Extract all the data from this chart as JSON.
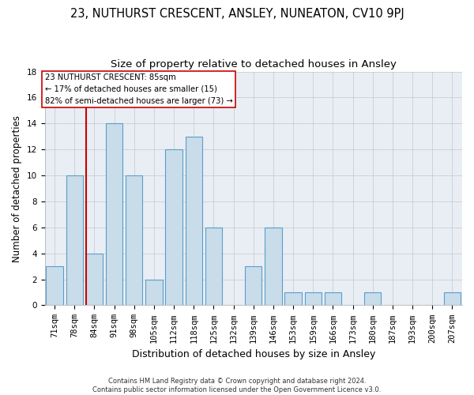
{
  "title": "23, NUTHURST CRESCENT, ANSLEY, NUNEATON, CV10 9PJ",
  "subtitle": "Size of property relative to detached houses in Ansley",
  "xlabel": "Distribution of detached houses by size in Ansley",
  "ylabel": "Number of detached properties",
  "categories": [
    "71sqm",
    "78sqm",
    "84sqm",
    "91sqm",
    "98sqm",
    "105sqm",
    "112sqm",
    "118sqm",
    "125sqm",
    "132sqm",
    "139sqm",
    "146sqm",
    "153sqm",
    "159sqm",
    "166sqm",
    "173sqm",
    "180sqm",
    "187sqm",
    "193sqm",
    "200sqm",
    "207sqm"
  ],
  "values": [
    3,
    10,
    4,
    14,
    10,
    2,
    12,
    13,
    6,
    0,
    3,
    6,
    1,
    1,
    1,
    0,
    1,
    0,
    0,
    0,
    1
  ],
  "bar_color": "#c9dcea",
  "bar_edge_color": "#5b9ec9",
  "highlight_index": 2,
  "highlight_line_color": "#cc0000",
  "ylim": [
    0,
    18
  ],
  "yticks": [
    0,
    2,
    4,
    6,
    8,
    10,
    12,
    14,
    16,
    18
  ],
  "annotation_text": "23 NUTHURST CRESCENT: 85sqm\n← 17% of detached houses are smaller (15)\n82% of semi-detached houses are larger (73) →",
  "annotation_box_color": "#cc0000",
  "footnote": "Contains HM Land Registry data © Crown copyright and database right 2024.\nContains public sector information licensed under the Open Government Licence v3.0.",
  "background_color": "#e8eef4",
  "grid_color": "#c0c8d0",
  "title_fontsize": 10.5,
  "subtitle_fontsize": 9.5,
  "xlabel_fontsize": 9,
  "ylabel_fontsize": 8.5,
  "tick_fontsize": 7.5,
  "footnote_fontsize": 6
}
